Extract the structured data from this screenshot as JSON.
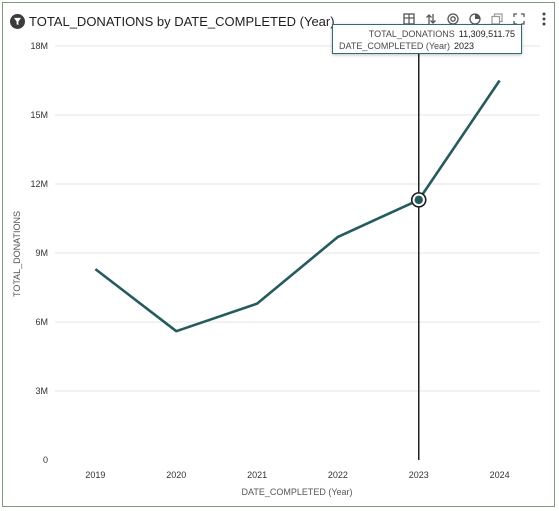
{
  "header": {
    "title": "TOTAL_DONATIONS by DATE_COMPLETED (Year)",
    "filter_icon": "filter-icon"
  },
  "toolbar": {
    "icons": [
      "data-table-icon",
      "sort-icon",
      "target-icon",
      "pie-chart-icon",
      "copy-icon",
      "fullscreen-icon",
      "more-vertical-icon"
    ]
  },
  "tooltip": {
    "measure_label": "TOTAL_DONATIONS",
    "measure_value": "11,309,511.75",
    "dimension_label": "DATE_COMPLETED (Year)",
    "dimension_value": "2023"
  },
  "colors": {
    "line": "#255a5e",
    "grid": "#e6e6e6",
    "frame": "#7e9a72"
  },
  "chart_data": {
    "type": "line",
    "title": "TOTAL_DONATIONS by DATE_COMPLETED (Year)",
    "xlabel": "DATE_COMPLETED (Year)",
    "ylabel": "TOTAL_DONATIONS",
    "categories": [
      "2019",
      "2020",
      "2021",
      "2022",
      "2023",
      "2024"
    ],
    "series": [
      {
        "name": "TOTAL_DONATIONS",
        "values": [
          8300000,
          5600000,
          6800000,
          9700000,
          11309511.75,
          16500000
        ]
      }
    ],
    "ylim": [
      0,
      18000000
    ],
    "yticks": [
      0,
      3000000,
      6000000,
      9000000,
      12000000,
      15000000,
      18000000
    ],
    "ytick_labels": [
      "0",
      "3M",
      "6M",
      "9M",
      "12M",
      "15M",
      "18M"
    ],
    "highlight": {
      "category": "2023",
      "value": 11309511.75
    },
    "grid": true,
    "legend": "none"
  }
}
